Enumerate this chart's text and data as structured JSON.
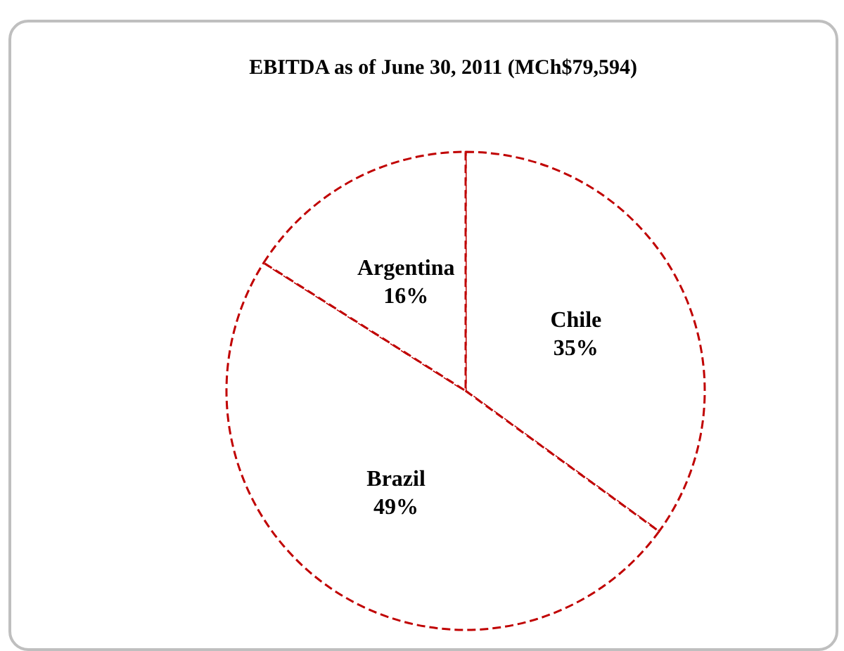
{
  "chart_data": {
    "type": "pie",
    "title": "EBITDA as of June 30, 2011 (MCh$79,594)",
    "categories": [
      "Chile",
      "Brazil",
      "Argentina"
    ],
    "values": [
      35,
      49,
      16
    ],
    "value_labels": [
      "35%",
      "49%",
      "16%"
    ],
    "colors": [
      "#ffffff",
      "#ffffff",
      "#ffffff"
    ]
  }
}
